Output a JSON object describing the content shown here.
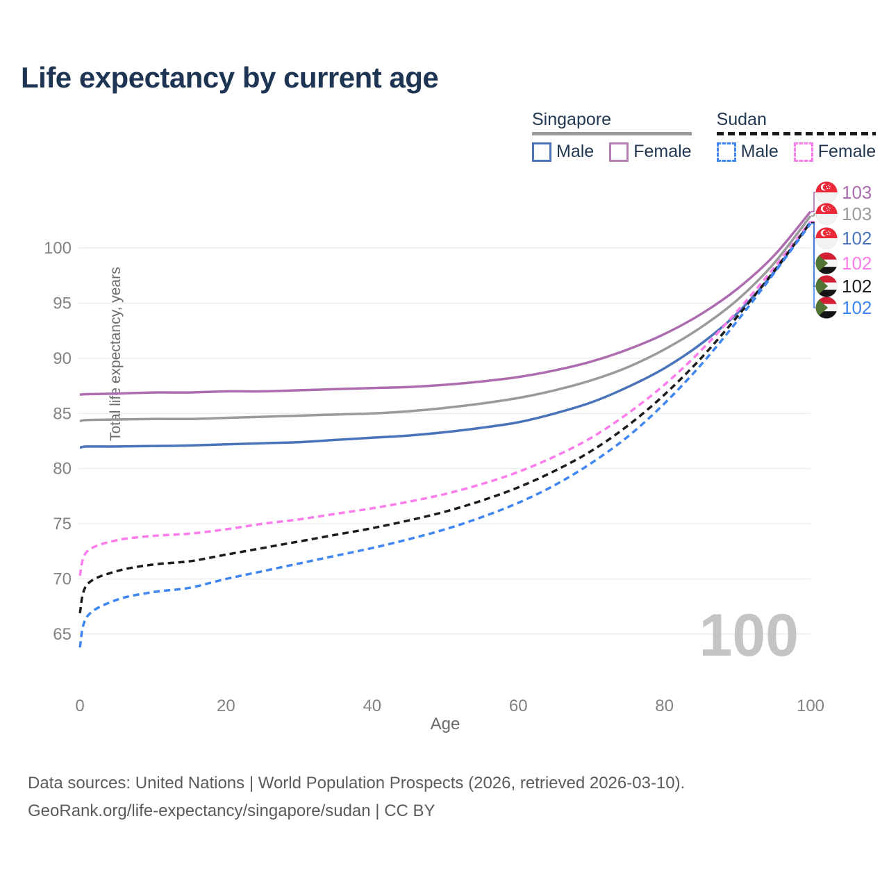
{
  "title": "Life expectancy by current age",
  "legend": {
    "groups": [
      {
        "label": "Singapore",
        "line_style": "solid",
        "underline_color": "#9a9a9a",
        "items": [
          {
            "label": "Male",
            "color": "#4a74b9",
            "dash": "solid"
          },
          {
            "label": "Female",
            "color": "#b57fb5",
            "dash": "solid"
          }
        ]
      },
      {
        "label": "Sudan",
        "line_style": "dashed",
        "underline_color": "#1a1a1a",
        "items": [
          {
            "label": "Male",
            "color": "#3f86f0",
            "dash": "dashed"
          },
          {
            "label": "Female",
            "color": "#fb7cea",
            "dash": "dashed"
          }
        ]
      }
    ]
  },
  "footer": {
    "line1": "Data sources: United Nations | World Population Prospects (2026, retrieved 2026-03-10).",
    "line2": "GeoRank.org/life-expectancy/singapore/sudan | CC BY"
  },
  "chart_data": {
    "type": "line",
    "title": "Life expectancy by current age",
    "xlabel": "Age",
    "ylabel": "Total life expectancy, years",
    "xlim": [
      0,
      100
    ],
    "ylim": [
      63,
      104
    ],
    "xticks": [
      0,
      20,
      40,
      60,
      80,
      100
    ],
    "yticks": [
      65,
      70,
      75,
      80,
      85,
      90,
      95,
      100
    ],
    "grid": "horizontal",
    "legend_position": "top-right",
    "watermark": "100",
    "x": [
      0,
      1,
      5,
      10,
      15,
      20,
      25,
      30,
      35,
      40,
      45,
      50,
      55,
      60,
      65,
      70,
      75,
      80,
      85,
      90,
      95,
      100
    ],
    "series": [
      {
        "name": "Singapore Female",
        "country": "Singapore",
        "sex": "Female",
        "color": "#ad6caf",
        "dash": "solid",
        "end_label": "103",
        "flag": "singapore",
        "values": [
          86.7,
          86.75,
          86.8,
          86.9,
          86.9,
          87.0,
          87.0,
          87.1,
          87.2,
          87.3,
          87.4,
          87.6,
          87.9,
          88.3,
          88.9,
          89.7,
          90.8,
          92.2,
          94.0,
          96.3,
          99.3,
          103.3
        ]
      },
      {
        "name": "Singapore Both sexes",
        "country": "Singapore",
        "sex": "Both",
        "color": "#9a9a9a",
        "dash": "solid",
        "end_label": "103",
        "flag": "singapore",
        "values": [
          84.3,
          84.4,
          84.45,
          84.5,
          84.5,
          84.6,
          84.7,
          84.8,
          84.9,
          85.0,
          85.2,
          85.5,
          85.9,
          86.4,
          87.1,
          88.0,
          89.2,
          90.8,
          92.8,
          95.3,
          98.6,
          102.9
        ]
      },
      {
        "name": "Singapore Male",
        "country": "Singapore",
        "sex": "Male",
        "color": "#4a74b9",
        "dash": "solid",
        "end_label": "102",
        "flag": "singapore",
        "values": [
          81.9,
          82.0,
          82.0,
          82.05,
          82.1,
          82.2,
          82.3,
          82.4,
          82.6,
          82.8,
          83.0,
          83.3,
          83.7,
          84.2,
          85.0,
          86.0,
          87.4,
          89.1,
          91.3,
          94.1,
          97.8,
          102.4
        ]
      },
      {
        "name": "Sudan Female",
        "country": "Sudan",
        "sex": "Female",
        "color": "#fb7cea",
        "dash": "dashed",
        "end_label": "102",
        "flag": "sudan",
        "values": [
          70.3,
          72.5,
          73.5,
          73.9,
          74.1,
          74.5,
          75.0,
          75.4,
          75.9,
          76.4,
          77.0,
          77.7,
          78.6,
          79.7,
          81.1,
          82.8,
          85.0,
          87.6,
          90.7,
          94.3,
          98.2,
          102.4
        ]
      },
      {
        "name": "Sudan Both sexes",
        "country": "Sudan",
        "sex": "Both",
        "color": "#1c1c1c",
        "dash": "dashed",
        "end_label": "102",
        "flag": "sudan",
        "values": [
          66.9,
          69.5,
          70.7,
          71.3,
          71.6,
          72.2,
          72.8,
          73.4,
          74.0,
          74.6,
          75.3,
          76.1,
          77.1,
          78.3,
          79.8,
          81.6,
          83.9,
          86.7,
          90.0,
          93.8,
          97.9,
          102.3
        ]
      },
      {
        "name": "Sudan Male",
        "country": "Sudan",
        "sex": "Male",
        "color": "#3f86f0",
        "dash": "dashed",
        "end_label": "102",
        "flag": "sudan",
        "values": [
          63.8,
          66.6,
          68.1,
          68.8,
          69.2,
          70.0,
          70.7,
          71.4,
          72.1,
          72.8,
          73.6,
          74.5,
          75.6,
          76.9,
          78.5,
          80.5,
          82.9,
          85.9,
          89.4,
          93.4,
          97.7,
          102.2
        ]
      }
    ],
    "flag_colors": {
      "singapore_red": "#ed2939",
      "singapore_white": "#f2f2f2",
      "sudan_red": "#d21f34",
      "sudan_white": "#f5f5f5",
      "sudan_black": "#141414",
      "sudan_green": "#517434"
    },
    "style": {
      "grid_color": "#ebebeb",
      "tick_color": "#828282",
      "axis_title_color": "#6b6b6b",
      "watermark_color": "#c4c4c4"
    }
  }
}
